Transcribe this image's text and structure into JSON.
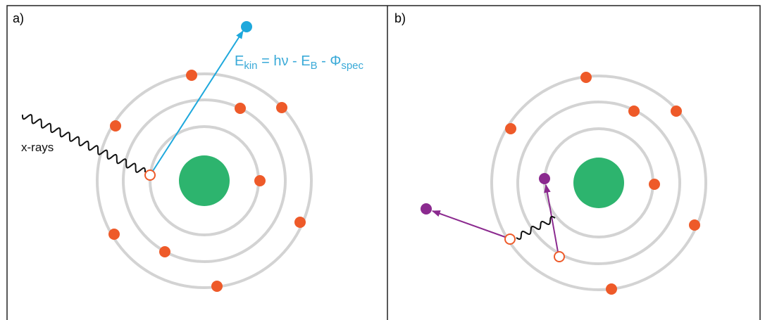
{
  "panels": [
    {
      "label": "a)"
    },
    {
      "label": "b)"
    }
  ],
  "xray_label": "x-rays",
  "equation": {
    "parts": [
      "E",
      "kin",
      " = hν - E",
      "B",
      " - Φ",
      "spec"
    ]
  }
}
